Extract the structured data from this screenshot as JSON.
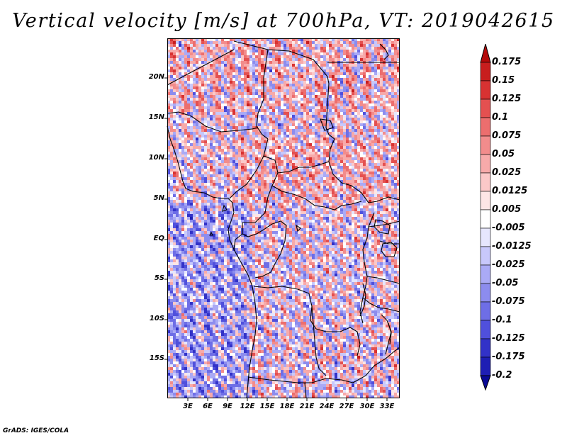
{
  "title": "Vertical velocity [m/s] at 700hPa, VT: 2019042615",
  "credit": "GrADS: IGES/COLA",
  "map": {
    "lat_labels": [
      "20N",
      "15N",
      "10N",
      "5N",
      "EQ",
      "5S",
      "10S",
      "15S"
    ],
    "lon_labels": [
      "3E",
      "6E",
      "9E",
      "12E",
      "15E",
      "18E",
      "21E",
      "24E",
      "27E",
      "30E",
      "33E"
    ]
  },
  "colorbar": {
    "levels": [
      "0.175",
      "0.15",
      "0.125",
      "0.1",
      "0.075",
      "0.05",
      "0.025",
      "0.0125",
      "0.005",
      "-0.005",
      "-0.0125",
      "-0.025",
      "-0.05",
      "-0.075",
      "-0.1",
      "-0.125",
      "-0.175",
      "-0.2"
    ],
    "colors": [
      "#b40a0a",
      "#c81e1e",
      "#d83232",
      "#e45050",
      "#ec6e6e",
      "#f28c8c",
      "#f7aaaa",
      "#fbc8c8",
      "#fde6e6",
      "#ffffff",
      "#e6e6fd",
      "#c8c8fb",
      "#aaaaf5",
      "#8c8cee",
      "#6e6ee6",
      "#5050dc",
      "#3232c8",
      "#1e1eb4",
      "#0a0a96"
    ]
  }
}
